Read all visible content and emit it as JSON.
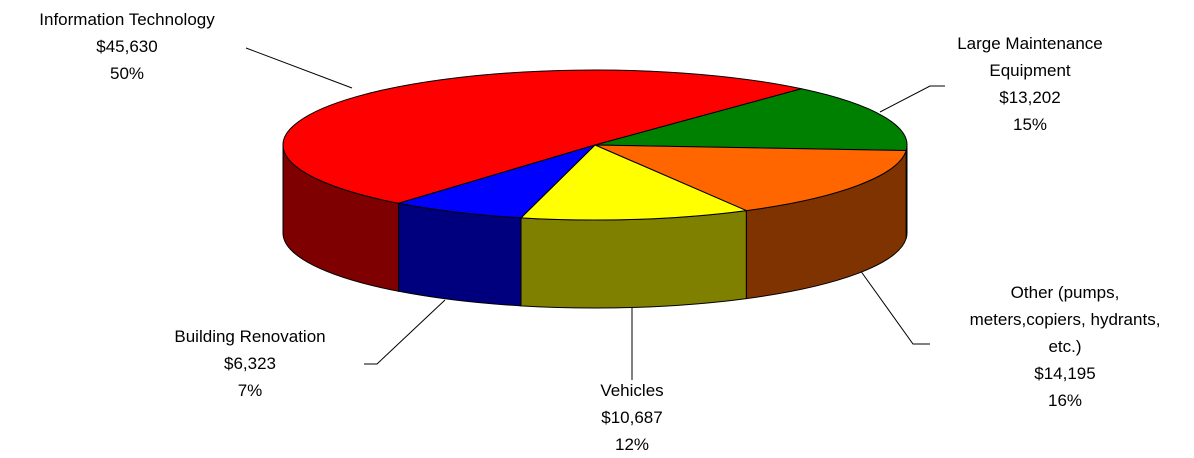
{
  "chart_data": {
    "type": "pie3d",
    "categories": [
      "Information Technology",
      "Large Maintenance\nEquipment",
      "Other (pumps,\nmeters,copiers, hydrants,\netc.)",
      "Vehicles",
      "Building Renovation"
    ],
    "values": [
      45630,
      13202,
      14195,
      10687,
      6323
    ],
    "value_labels": [
      "$45,630",
      "$13,202",
      "$14,195",
      "$10,687",
      "$6,323"
    ],
    "percent_labels": [
      "50%",
      "15%",
      "16%",
      "12%",
      "7%"
    ],
    "colors": [
      "#ff0000",
      "#008000",
      "#ff6600",
      "#ffff00",
      "#0000ff"
    ]
  }
}
